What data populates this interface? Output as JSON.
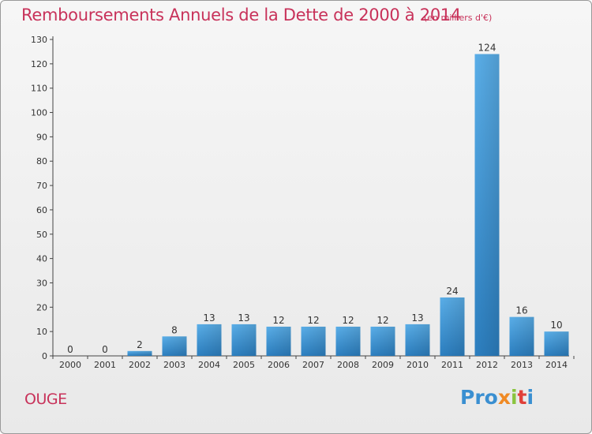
{
  "header": {
    "title": "Remboursements Annuels de la Dette de 2000 à 2014",
    "unit": "(en milliers d'€)"
  },
  "footer": {
    "commune": "OUGE",
    "logo": [
      "Pro",
      "x",
      "i",
      "t",
      "i"
    ]
  },
  "colors": {
    "title": "#c8325a",
    "bar_top": "#5aaee8",
    "bar_bottom": "#2c7fc0"
  },
  "chart_data": {
    "type": "bar",
    "categories": [
      "2000",
      "2001",
      "2002",
      "2003",
      "2004",
      "2005",
      "2006",
      "2007",
      "2008",
      "2009",
      "2010",
      "2011",
      "2012",
      "2013",
      "2014"
    ],
    "values": [
      0,
      0,
      2,
      8,
      13,
      13,
      12,
      12,
      12,
      12,
      13,
      24,
      124,
      16,
      10
    ],
    "ylim": [
      0,
      130
    ],
    "yticks": [
      0,
      10,
      20,
      30,
      40,
      50,
      60,
      70,
      80,
      90,
      100,
      110,
      120,
      130
    ],
    "grid": false,
    "legend": "none"
  }
}
